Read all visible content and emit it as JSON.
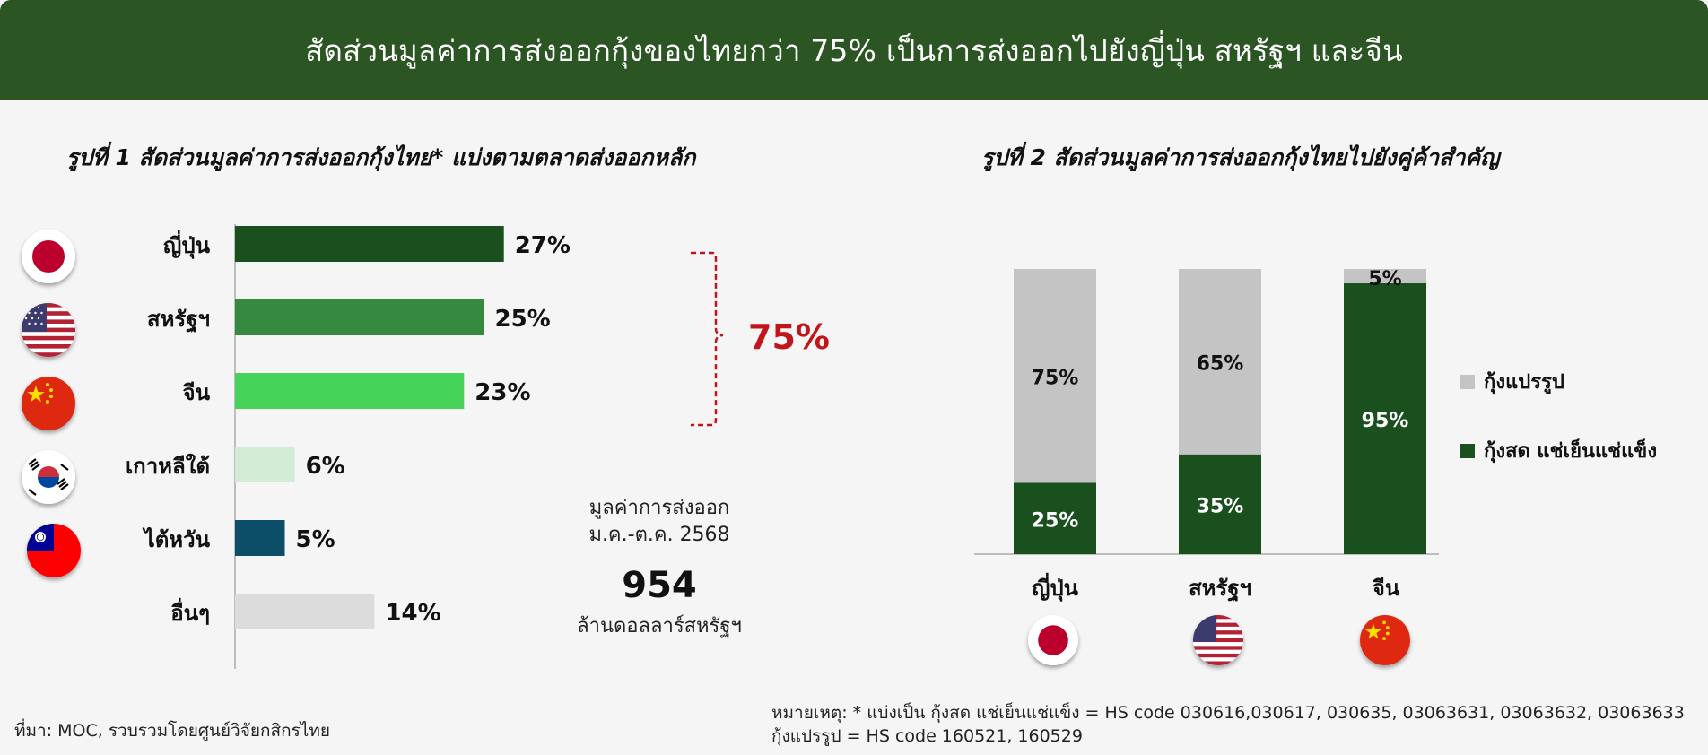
{
  "header": {
    "title": "สัดส่วนมูลค่าการส่งออกกุ้งของไทยกว่า 75% เป็นการส่งออกไปยังญี่ปุ่น สหรัฐฯ และจีน"
  },
  "chart1_title": "รูปที่ 1 สัดส่วนมูลค่าการส่งออกกุ้งไทย* แบ่งตามตลาดส่งออกหลัก",
  "chart2_title": "รูปที่ 2 สัดส่วนมูลค่าการส่งออกกุ้งไทยไปยังคู่ค้าสำคัญ",
  "export_note": {
    "caption_line1": "มูลค่าการส่งออก",
    "caption_line2": "ม.ค.-ต.ค. 2568",
    "value": "954",
    "unit": "ล้านดอลลาร์สหรัฐฯ"
  },
  "bracket_label": "75%",
  "source": "ที่มา: MOC, รวบรวมโดยศูนย์วิจัยกสิกรไทย",
  "remark_line1": "หมายเหตุ: * แบ่งเป็น กุ้งสด แช่เย็นแช่แข็ง = HS code 030616,030617, 030635, 03063631, 03063632, 03063633",
  "remark_line2": "กุ้งแปรรูป = HS code 160521, 160529",
  "flags": {
    "japan": "japan-flag-icon",
    "usa": "usa-flag-icon",
    "china": "china-flag-icon",
    "korea": "korea-flag-icon",
    "taiwan": "taiwan-flag-icon"
  },
  "colors": {
    "header": "#2b5624",
    "bracket": "#c0161b",
    "processed": "#c4c4c4",
    "fresh": "#1a4f1e"
  },
  "chart_data": [
    {
      "type": "bar",
      "orientation": "horizontal",
      "categories": [
        "ญี่ปุ่น",
        "สหรัฐฯ",
        "จีน",
        "เกาหลีใต้",
        "ไต้หวัน",
        "อื่นๆ"
      ],
      "values": [
        27,
        25,
        23,
        6,
        5,
        14
      ],
      "value_labels": [
        "27%",
        "25%",
        "23%",
        "6%",
        "5%",
        "14%"
      ],
      "colors": [
        "#1a4f1e",
        "#358a40",
        "#45d35a",
        "#d3ecd6",
        "#0c4e68",
        "#dcdcdc"
      ],
      "unit": "%",
      "xlim": [
        0,
        100
      ]
    },
    {
      "type": "bar",
      "stacked": true,
      "categories": [
        "ญี่ปุ่น",
        "สหรัฐฯ",
        "จีน"
      ],
      "series": [
        {
          "name": "กุ้งสด แช่เย็นแช่แข็ง",
          "values": [
            25,
            35,
            95
          ],
          "labels": [
            "25%",
            "35%",
            "95%"
          ],
          "color": "#1a4f1e"
        },
        {
          "name": "กุ้งแปรรูป",
          "values": [
            75,
            65,
            5
          ],
          "labels": [
            "75%",
            "65%",
            "5%"
          ],
          "color": "#c4c4c4"
        }
      ],
      "ylim": [
        0,
        100
      ],
      "legend": "right"
    }
  ]
}
